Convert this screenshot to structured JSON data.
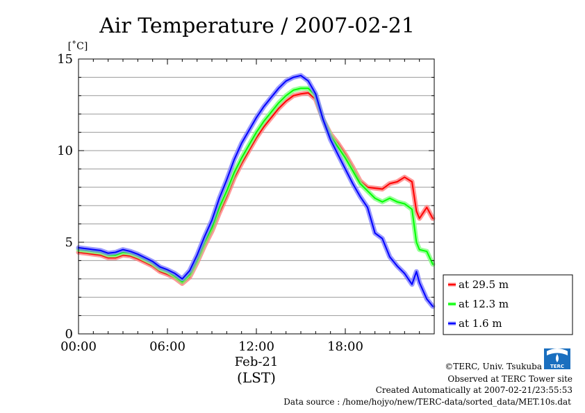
{
  "title": "Air Temperature / 2007-02-21",
  "y_unit": "[˚C]",
  "x_date_label": "Feb-21",
  "x_zone_label": "(LST)",
  "credits": {
    "copyright": "©TERC, Univ. Tsukuba",
    "site": "Observed at TERC Tower site",
    "created": "Created Automatically at 2007-02-21/23:55:53",
    "source": "Data source : /home/hojyo/new/TERC-data/sorted_data/MET.10s.dat"
  },
  "logo_text": "TERC",
  "chart_data": {
    "type": "line",
    "xlabel": "",
    "ylabel": "[˚C]",
    "xlim": [
      0,
      24
    ],
    "ylim": [
      0,
      15
    ],
    "x_ticks": [
      {
        "v": 0,
        "label": "00:00"
      },
      {
        "v": 6,
        "label": "06:00"
      },
      {
        "v": 12,
        "label": "12:00"
      },
      {
        "v": 18,
        "label": "18:00"
      }
    ],
    "y_ticks": [
      {
        "v": 0,
        "label": "0"
      },
      {
        "v": 5,
        "label": "5"
      },
      {
        "v": 10,
        "label": "10"
      },
      {
        "v": 15,
        "label": "15"
      }
    ],
    "grid": true,
    "legend": "right",
    "series": [
      {
        "name": "at 29.5 m",
        "color": "#ff0000",
        "glow": "#ff8080",
        "x": [
          0,
          0.5,
          1,
          1.5,
          2,
          2.5,
          3,
          3.5,
          4,
          4.5,
          5,
          5.5,
          6,
          6.5,
          7,
          7.5,
          8,
          8.5,
          9,
          9.5,
          10,
          10.5,
          11,
          11.5,
          12,
          12.5,
          13,
          13.5,
          14,
          14.5,
          15,
          15.5,
          16,
          16.5,
          17,
          17.5,
          18,
          18.5,
          19,
          19.5,
          20,
          20.5,
          21,
          21.5,
          22,
          22.5,
          22.8,
          23,
          23.5,
          23.9
        ],
        "y": [
          4.45,
          4.4,
          4.35,
          4.3,
          4.15,
          4.15,
          4.3,
          4.25,
          4.1,
          3.9,
          3.7,
          3.4,
          3.25,
          3.05,
          2.75,
          3.1,
          3.9,
          4.8,
          5.6,
          6.6,
          7.5,
          8.5,
          9.3,
          10.0,
          10.7,
          11.3,
          11.8,
          12.3,
          12.7,
          13.0,
          13.1,
          13.15,
          12.8,
          11.7,
          10.9,
          10.4,
          9.8,
          9.1,
          8.35,
          8.0,
          7.95,
          7.9,
          8.2,
          8.3,
          8.55,
          8.3,
          6.7,
          6.3,
          6.9,
          6.3
        ]
      },
      {
        "name": "at 12.3 m",
        "color": "#00ff00",
        "glow": "#80ff80",
        "x": [
          0,
          0.5,
          1,
          1.5,
          2,
          2.5,
          3,
          3.5,
          4,
          4.5,
          5,
          5.5,
          6,
          6.5,
          7,
          7.5,
          8,
          8.5,
          9,
          9.5,
          10,
          10.5,
          11,
          11.5,
          12,
          12.5,
          13,
          13.5,
          14,
          14.5,
          15,
          15.5,
          16,
          16.5,
          17,
          17.5,
          18,
          18.5,
          19,
          19.5,
          20,
          20.5,
          21,
          21.5,
          22,
          22.5,
          22.8,
          23,
          23.5,
          23.9
        ],
        "y": [
          4.6,
          4.55,
          4.5,
          4.45,
          4.3,
          4.3,
          4.45,
          4.4,
          4.25,
          4.05,
          3.85,
          3.55,
          3.4,
          3.15,
          2.85,
          3.25,
          4.05,
          5.0,
          5.8,
          6.9,
          7.8,
          8.8,
          9.6,
          10.3,
          11.0,
          11.6,
          12.1,
          12.6,
          13.0,
          13.3,
          13.4,
          13.4,
          13.0,
          11.7,
          10.8,
          10.2,
          9.6,
          8.9,
          8.2,
          7.8,
          7.4,
          7.2,
          7.4,
          7.2,
          7.1,
          6.8,
          5.0,
          4.6,
          4.5,
          3.8
        ]
      },
      {
        "name": "at 1.6 m",
        "color": "#0000ff",
        "glow": "#8080ff",
        "x": [
          0,
          0.5,
          1,
          1.5,
          2,
          2.5,
          3,
          3.5,
          4,
          4.5,
          5,
          5.5,
          6,
          6.5,
          7,
          7.5,
          8,
          8.5,
          9,
          9.5,
          10,
          10.5,
          11,
          11.5,
          12,
          12.5,
          13,
          13.5,
          14,
          14.5,
          15,
          15.5,
          16,
          16.5,
          17,
          17.5,
          18,
          18.5,
          19,
          19.5,
          20,
          20.5,
          21,
          21.5,
          22,
          22.5,
          22.8,
          23,
          23.5,
          23.9
        ],
        "y": [
          4.7,
          4.65,
          4.6,
          4.55,
          4.4,
          4.45,
          4.6,
          4.5,
          4.35,
          4.15,
          3.95,
          3.65,
          3.5,
          3.3,
          3.0,
          3.45,
          4.3,
          5.3,
          6.2,
          7.4,
          8.4,
          9.5,
          10.4,
          11.1,
          11.8,
          12.4,
          12.9,
          13.4,
          13.8,
          14.0,
          14.1,
          13.8,
          13.1,
          11.7,
          10.6,
          9.8,
          9.0,
          8.2,
          7.5,
          6.9,
          5.5,
          5.2,
          4.2,
          3.7,
          3.3,
          2.7,
          3.4,
          2.8,
          1.9,
          1.5
        ]
      }
    ]
  }
}
